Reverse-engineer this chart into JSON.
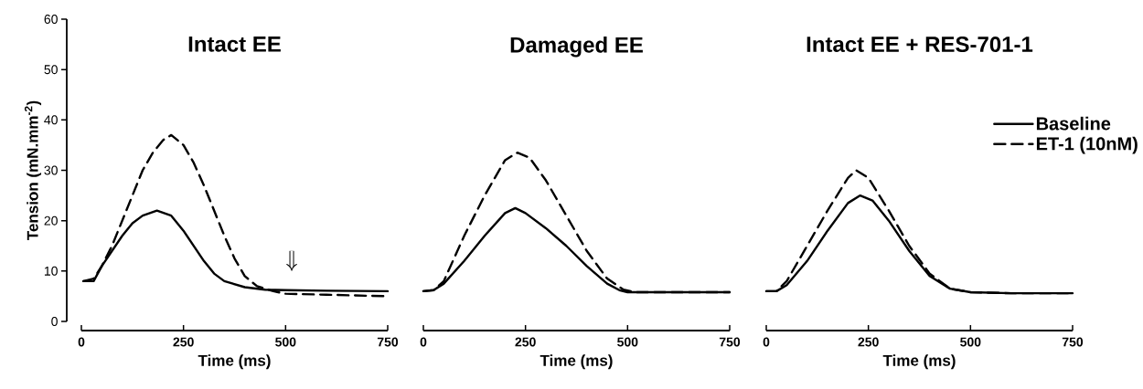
{
  "chart_data": [
    {
      "type": "line",
      "title": "Intact EE",
      "xlabel": "Time (ms)",
      "ylabel": "Tension (mN.mm$^{-2}$)",
      "xlim": [
        0,
        750
      ],
      "xticks": [
        0,
        250,
        500,
        750
      ],
      "ylim": [
        0,
        60
      ],
      "yticks": [
        0,
        10,
        20,
        30,
        40,
        50,
        60
      ],
      "series": [
        {
          "color": "#000000",
          "line_style": "solid",
          "x": [
            5,
            30,
            50,
            75,
            100,
            125,
            150,
            185,
            220,
            250,
            275,
            300,
            325,
            350,
            400,
            450,
            500,
            600,
            750
          ],
          "values": [
            8,
            8,
            11,
            14,
            17,
            19.5,
            21,
            22,
            21,
            18,
            15,
            12,
            9.5,
            8,
            6.8,
            6.3,
            6.2,
            6.1,
            6
          ]
        },
        {
          "color": "#000000",
          "line_style": "dashed",
          "x": [
            5,
            30,
            50,
            75,
            100,
            125,
            150,
            175,
            200,
            220,
            250,
            275,
            300,
            325,
            350,
            375,
            400,
            430,
            470,
            500,
            600,
            750
          ],
          "values": [
            8,
            8.5,
            11,
            15,
            20,
            25,
            30,
            33.5,
            36,
            37,
            35,
            31.5,
            27,
            22,
            17,
            12.5,
            9,
            7,
            6,
            5.5,
            5.3,
            5
          ]
        }
      ]
    },
    {
      "type": "line",
      "title": "Damaged EE",
      "xlabel": "Time (ms)",
      "xlim": [
        0,
        750
      ],
      "xticks": [
        0,
        250,
        500,
        750
      ],
      "ylim": [
        0,
        60
      ],
      "tick_labels": "x",
      "series": [
        {
          "color": "#000000",
          "line_style": "solid",
          "x": [
            0,
            25,
            50,
            100,
            150,
            200,
            225,
            250,
            300,
            350,
            400,
            450,
            480,
            500,
            600,
            750
          ],
          "values": [
            6,
            6.2,
            7.5,
            12,
            17,
            21.5,
            22.5,
            21.5,
            18.5,
            15,
            11,
            7.5,
            6.2,
            5.8,
            5.8,
            5.8
          ]
        },
        {
          "color": "#000000",
          "line_style": "dashed",
          "x": [
            0,
            25,
            50,
            100,
            150,
            200,
            230,
            260,
            300,
            350,
            400,
            450,
            490,
            520,
            600,
            750
          ],
          "values": [
            6,
            6.2,
            8,
            17,
            25,
            32,
            33.5,
            32.5,
            28,
            21,
            14,
            8.5,
            6.3,
            5.8,
            5.8,
            5.8
          ]
        }
      ]
    },
    {
      "type": "line",
      "title": "Intact EE + RES-701-1",
      "xlabel": "Time (ms)",
      "xlim": [
        0,
        750
      ],
      "xticks": [
        0,
        250,
        500,
        750
      ],
      "ylim": [
        0,
        60
      ],
      "tick_labels": "x",
      "legend": "top right",
      "series": [
        {
          "name": "Baseline",
          "color": "#000000",
          "line_style": "solid",
          "x": [
            0,
            25,
            50,
            100,
            150,
            200,
            230,
            260,
            300,
            350,
            400,
            450,
            500,
            600,
            750
          ],
          "values": [
            6,
            6,
            7.2,
            12,
            18,
            23.5,
            25,
            24,
            20,
            14,
            9,
            6.5,
            5.8,
            5.6,
            5.6
          ]
        },
        {
          "name": "ET-1 (10nM)",
          "color": "#000000",
          "line_style": "dashed",
          "x": [
            0,
            25,
            50,
            100,
            150,
            200,
            220,
            250,
            300,
            350,
            400,
            450,
            500,
            600,
            750
          ],
          "values": [
            6,
            6,
            8,
            15,
            22,
            28.5,
            30,
            28.5,
            22,
            15,
            9.5,
            6.5,
            5.8,
            5.6,
            5.6
          ]
        }
      ]
    }
  ]
}
